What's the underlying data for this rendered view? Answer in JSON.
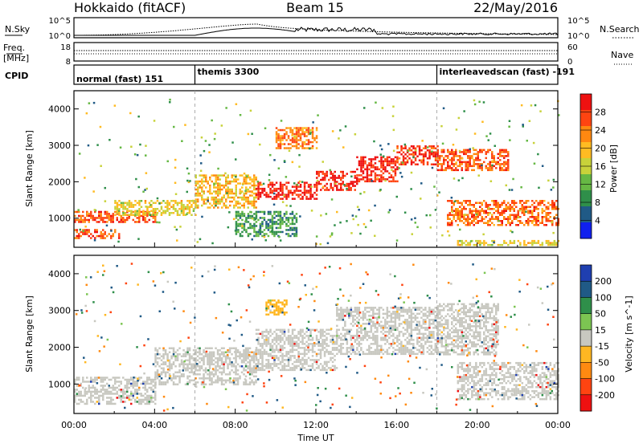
{
  "header": {
    "title_left": "Hokkaido (fitACF)",
    "title_center": "Beam 15",
    "title_right": "22/May/2016"
  },
  "top_panels": {
    "nsky_label": "N.Sky",
    "nsearch_label": "N.Search",
    "nsky_ticks": [
      "10^5",
      "10^0"
    ],
    "nsearch_ticks": [
      "10^5",
      "10^0"
    ],
    "freq_label": "Freq.",
    "freq_unit": "[MHz]",
    "freq_ticks": [
      "18",
      "8"
    ],
    "nave_label": "Nave",
    "nave_ticks": [
      "60",
      "0"
    ],
    "cpid_label": "CPID",
    "cpid_segments": [
      {
        "label": "normal (fast) 151",
        "start_hour": 0
      },
      {
        "label": "themis 3300",
        "start_hour": 6
      },
      {
        "label": "interleavedscan (fast) -191",
        "start_hour": 18
      }
    ]
  },
  "chart_data": [
    {
      "type": "heatmap",
      "title": "",
      "ylabel": "Slant Range [km]",
      "xlabel": "",
      "xlim": [
        0,
        24
      ],
      "ylim": [
        200,
        4500
      ],
      "yticks": [
        "1000",
        "2000",
        "3000",
        "4000"
      ],
      "colorbar": {
        "label": "Power [dB]",
        "ticks": [
          "28",
          "24",
          "20",
          "16",
          "12",
          "8",
          "4"
        ],
        "colors": [
          "#ee1111",
          "#ff4411",
          "#ff8811",
          "#ffbb22",
          "#c8d23a",
          "#66b844",
          "#2f8f4a",
          "#205a86",
          "#1020ee"
        ]
      },
      "bands": [
        {
          "x": [
            0,
            2.2
          ],
          "y": [
            450,
            700
          ],
          "level": 24
        },
        {
          "x": [
            0,
            4
          ],
          "y": [
            900,
            1200
          ],
          "level": 24
        },
        {
          "x": [
            2,
            6
          ],
          "y": [
            1100,
            1500
          ],
          "level": 16
        },
        {
          "x": [
            6,
            9
          ],
          "y": [
            1300,
            2200
          ],
          "level": 18
        },
        {
          "x": [
            9,
            12
          ],
          "y": [
            1550,
            2000
          ],
          "level": 27
        },
        {
          "x": [
            12,
            14
          ],
          "y": [
            1750,
            2300
          ],
          "level": 27
        },
        {
          "x": [
            14,
            16
          ],
          "y": [
            2000,
            2700
          ],
          "level": 27
        },
        {
          "x": [
            16,
            18
          ],
          "y": [
            2500,
            3000
          ],
          "level": 26
        },
        {
          "x": [
            18,
            21.5
          ],
          "y": [
            2300,
            2900
          ],
          "level": 24
        },
        {
          "x": [
            18.5,
            24
          ],
          "y": [
            800,
            1500
          ],
          "level": 23
        },
        {
          "x": [
            10,
            12
          ],
          "y": [
            2900,
            3500
          ],
          "level": 22
        },
        {
          "x": [
            8,
            11
          ],
          "y": [
            500,
            1200
          ],
          "level": 8
        },
        {
          "x": [
            19,
            24
          ],
          "y": [
            250,
            400
          ],
          "level": 16
        }
      ]
    },
    {
      "type": "heatmap",
      "title": "",
      "ylabel": "Slant Range [km]",
      "xlabel": "Time UT",
      "xlim": [
        0,
        24
      ],
      "ylim": [
        200,
        4500
      ],
      "xticks": [
        "00:00",
        "04:00",
        "08:00",
        "12:00",
        "16:00",
        "20:00",
        "00:00"
      ],
      "yticks": [
        "1000",
        "2000",
        "3000",
        "4000"
      ],
      "colorbar": {
        "label": "Velocity [m s^-1]",
        "ticks": [
          "200",
          "100",
          "50",
          "15",
          "-15",
          "-50",
          "-100",
          "-200"
        ],
        "colors": [
          "#1f3fb0",
          "#205a86",
          "#2f8f4a",
          "#7cc552",
          "#c8c8c0",
          "#ffb722",
          "#ff8a11",
          "#ff4411",
          "#ee1111"
        ]
      },
      "bands": [
        {
          "x": [
            0,
            4
          ],
          "y": [
            450,
            1200
          ],
          "level": 0
        },
        {
          "x": [
            4,
            9
          ],
          "y": [
            1000,
            2000
          ],
          "level": 0
        },
        {
          "x": [
            9,
            13
          ],
          "y": [
            1400,
            2500
          ],
          "level": 0
        },
        {
          "x": [
            13,
            18
          ],
          "y": [
            1800,
            3100
          ],
          "level": 0
        },
        {
          "x": [
            18,
            21
          ],
          "y": [
            1800,
            3200
          ],
          "level": 0
        },
        {
          "x": [
            19,
            24
          ],
          "y": [
            600,
            1600
          ],
          "level": 0
        },
        {
          "x": [
            9.5,
            10.5
          ],
          "y": [
            2900,
            3300
          ],
          "level": -40
        }
      ]
    }
  ]
}
